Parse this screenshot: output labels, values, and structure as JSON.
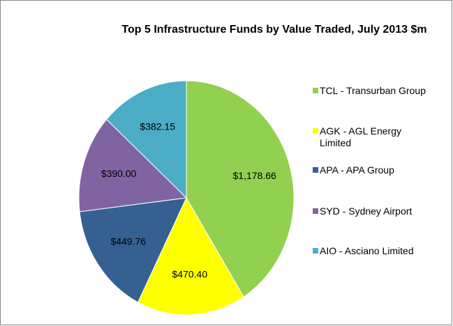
{
  "chart_data": {
    "type": "pie",
    "title": "Top 5 Infrastructure Funds by Value Traded, July 2013 $m",
    "categories": [
      "TCL - Transurban Group",
      "AGK - AGL Energy Limited",
      "APA - APA Group",
      "SYD - Sydney Airport",
      "AIO - Asciano Limited"
    ],
    "values": [
      1178.66,
      470.4,
      449.76,
      390.0,
      382.15
    ],
    "value_labels": [
      "$1,178.66",
      "$470.40",
      "$449.76",
      "$390.00",
      "$382.15"
    ],
    "colors": [
      "#92d050",
      "#ffff00",
      "#366092",
      "#8064a2",
      "#4bacc6"
    ],
    "legend": "right"
  }
}
